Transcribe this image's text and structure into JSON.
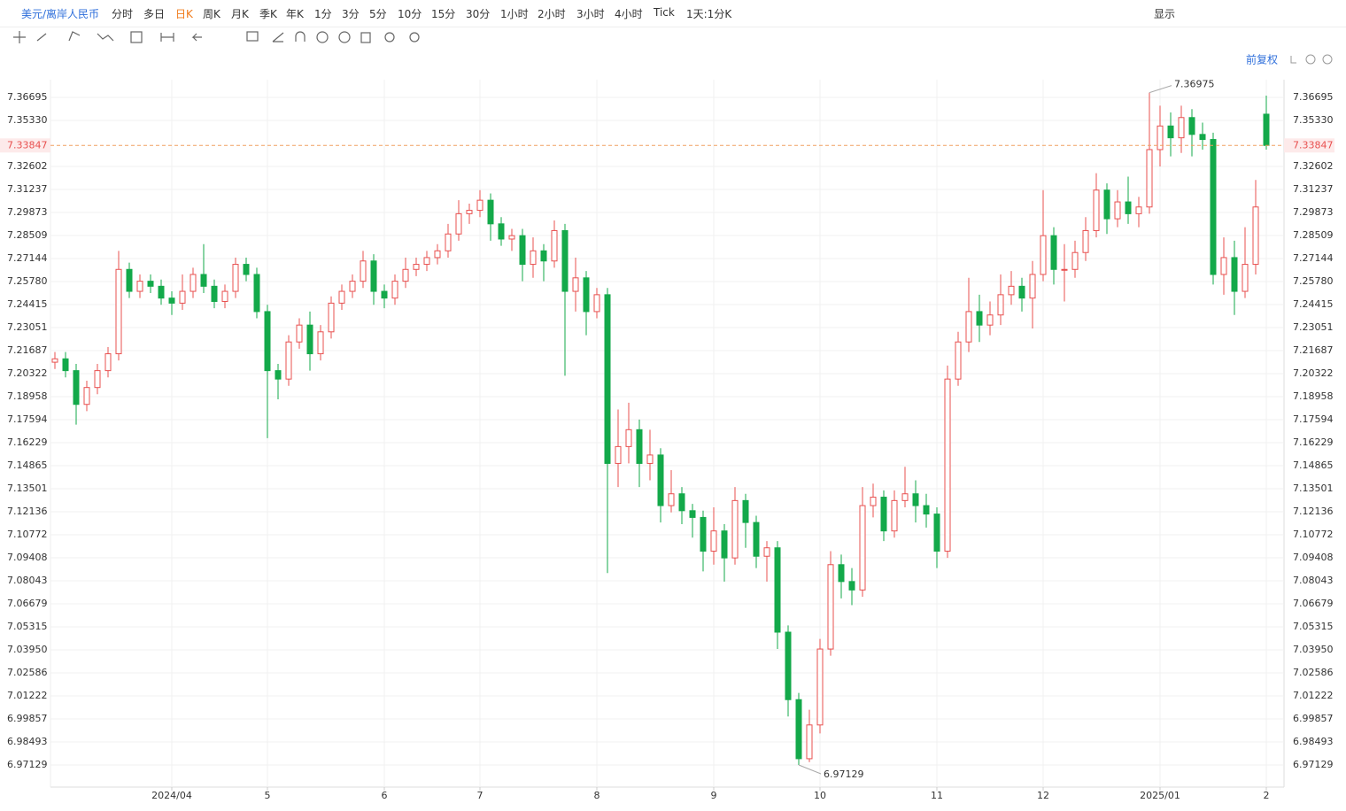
{
  "toolbar": {
    "symbol": "美元/离岸人民币",
    "periods": [
      "分时",
      "多日",
      "日K",
      "周K",
      "月K",
      "季K",
      "年K",
      "1分",
      "3分",
      "5分",
      "10分",
      "15分",
      "30分",
      "1小时",
      "2小时",
      "3小时",
      "4小时",
      "Tick",
      "1天:1分K"
    ],
    "active_period": "日K",
    "display": "显示",
    "adjust": "前复权"
  },
  "chart_data": {
    "type": "candlestick",
    "up_color": "#e8504f",
    "down_color": "#13a94a",
    "categories": [
      null,
      null,
      null,
      null,
      null,
      null,
      null,
      null,
      null,
      null,
      null,
      "2024/04",
      null,
      null,
      null,
      null,
      null,
      null,
      null,
      null,
      "5",
      null,
      null,
      null,
      null,
      null,
      null,
      null,
      null,
      null,
      null,
      "6",
      null,
      null,
      null,
      null,
      null,
      null,
      null,
      null,
      "7",
      null,
      null,
      null,
      null,
      null,
      null,
      null,
      null,
      null,
      null,
      "8",
      null,
      null,
      null,
      null,
      null,
      null,
      null,
      null,
      null,
      null,
      "9",
      null,
      null,
      null,
      null,
      null,
      null,
      null,
      null,
      null,
      "10",
      null,
      null,
      null,
      null,
      null,
      null,
      null,
      null,
      null,
      null,
      "11",
      null,
      null,
      null,
      null,
      null,
      null,
      null,
      null,
      null,
      "12",
      null,
      null,
      null,
      null,
      null,
      null,
      null,
      null,
      null,
      null,
      "2025/01",
      null,
      null,
      null,
      null,
      null,
      null,
      null,
      null,
      null,
      "2"
    ],
    "open": [
      7.21,
      7.212,
      7.205,
      7.185,
      7.195,
      7.205,
      7.215,
      7.265,
      7.252,
      7.258,
      7.255,
      7.248,
      7.245,
      7.252,
      7.262,
      7.255,
      7.246,
      7.252,
      7.268,
      7.262,
      7.24,
      7.205,
      7.2,
      7.222,
      7.232,
      7.215,
      7.228,
      7.245,
      7.252,
      7.258,
      7.27,
      7.252,
      7.248,
      7.258,
      7.265,
      7.268,
      7.272,
      7.276,
      7.286,
      7.298,
      7.3,
      7.306,
      7.292,
      7.283,
      7.285,
      7.268,
      7.276,
      7.27,
      7.288,
      7.252,
      7.26,
      7.24,
      7.25,
      7.15,
      7.16,
      7.17,
      7.15,
      7.155,
      7.125,
      7.132,
      7.122,
      7.118,
      7.098,
      7.11,
      7.094,
      7.128,
      7.115,
      7.095,
      7.1,
      7.05,
      7.01,
      6.975,
      6.995,
      7.04,
      7.09,
      7.08,
      7.075,
      7.125,
      7.13,
      7.11,
      7.128,
      7.132,
      7.125,
      7.12,
      7.098,
      7.2,
      7.222,
      7.24,
      7.232,
      7.238,
      7.25,
      7.255,
      7.248,
      7.262,
      7.285,
      7.265,
      7.265,
      7.275,
      7.288,
      7.312,
      7.295,
      7.305,
      7.298,
      7.302,
      7.336,
      7.35,
      7.343,
      7.355,
      7.345,
      7.342,
      7.262,
      7.272,
      7.252,
      7.268,
      7.357
    ],
    "high": [
      7.216,
      7.216,
      7.209,
      7.199,
      7.209,
      7.219,
      7.276,
      7.269,
      7.262,
      7.262,
      7.259,
      7.252,
      7.262,
      7.266,
      7.28,
      7.259,
      7.256,
      7.272,
      7.272,
      7.266,
      7.244,
      7.209,
      7.226,
      7.236,
      7.24,
      7.232,
      7.249,
      7.256,
      7.262,
      7.276,
      7.274,
      7.256,
      7.262,
      7.272,
      7.272,
      7.276,
      7.28,
      7.292,
      7.306,
      7.304,
      7.312,
      7.31,
      7.296,
      7.289,
      7.289,
      7.284,
      7.28,
      7.294,
      7.292,
      7.272,
      7.264,
      7.254,
      7.254,
      7.182,
      7.186,
      7.176,
      7.17,
      7.159,
      7.146,
      7.136,
      7.126,
      7.122,
      7.124,
      7.114,
      7.136,
      7.132,
      7.119,
      7.104,
      7.104,
      7.054,
      7.014,
      7.004,
      7.046,
      7.098,
      7.096,
      7.088,
      7.136,
      7.138,
      7.134,
      7.134,
      7.148,
      7.14,
      7.132,
      7.124,
      7.208,
      7.228,
      7.26,
      7.25,
      7.246,
      7.262,
      7.264,
      7.26,
      7.27,
      7.312,
      7.29,
      7.28,
      7.282,
      7.296,
      7.322,
      7.316,
      7.312,
      7.32,
      7.308,
      7.36975,
      7.362,
      7.358,
      7.362,
      7.36,
      7.352,
      7.346,
      7.284,
      7.282,
      7.29,
      7.318,
      7.368
    ],
    "low": [
      7.206,
      7.201,
      7.173,
      7.181,
      7.191,
      7.201,
      7.211,
      7.248,
      7.248,
      7.251,
      7.244,
      7.238,
      7.241,
      7.248,
      7.251,
      7.242,
      7.242,
      7.248,
      7.258,
      7.236,
      7.165,
      7.188,
      7.196,
      7.218,
      7.205,
      7.211,
      7.224,
      7.241,
      7.248,
      7.254,
      7.244,
      7.242,
      7.244,
      7.254,
      7.261,
      7.264,
      7.268,
      7.272,
      7.282,
      7.292,
      7.296,
      7.282,
      7.279,
      7.276,
      7.258,
      7.26,
      7.258,
      7.266,
      7.202,
      7.24,
      7.226,
      7.236,
      7.085,
      7.136,
      7.15,
      7.136,
      7.14,
      7.115,
      7.121,
      7.114,
      7.106,
      7.086,
      7.09,
      7.08,
      7.09,
      7.1,
      7.088,
      7.08,
      7.04,
      7.0,
      6.97129,
      6.973,
      6.99,
      7.036,
      7.07,
      7.066,
      7.071,
      7.118,
      7.104,
      7.106,
      7.124,
      7.115,
      7.112,
      7.088,
      7.094,
      7.196,
      7.216,
      7.222,
      7.226,
      7.232,
      7.244,
      7.24,
      7.23,
      7.258,
      7.256,
      7.246,
      7.26,
      7.27,
      7.284,
      7.286,
      7.29,
      7.292,
      7.29,
      7.298,
      7.326,
      7.332,
      7.334,
      7.332,
      7.336,
      7.256,
      7.25,
      7.238,
      7.248,
      7.262,
      7.336
    ],
    "close": [
      7.212,
      7.205,
      7.185,
      7.195,
      7.205,
      7.215,
      7.265,
      7.252,
      7.258,
      7.255,
      7.248,
      7.245,
      7.252,
      7.262,
      7.255,
      7.246,
      7.252,
      7.268,
      7.262,
      7.24,
      7.205,
      7.2,
      7.222,
      7.232,
      7.215,
      7.228,
      7.245,
      7.252,
      7.258,
      7.27,
      7.252,
      7.248,
      7.258,
      7.265,
      7.268,
      7.272,
      7.276,
      7.286,
      7.298,
      7.3,
      7.306,
      7.292,
      7.283,
      7.285,
      7.268,
      7.276,
      7.27,
      7.288,
      7.252,
      7.26,
      7.24,
      7.25,
      7.15,
      7.16,
      7.17,
      7.15,
      7.155,
      7.125,
      7.132,
      7.122,
      7.118,
      7.098,
      7.11,
      7.094,
      7.128,
      7.115,
      7.095,
      7.1,
      7.05,
      7.01,
      6.975,
      6.995,
      7.04,
      7.09,
      7.08,
      7.075,
      7.125,
      7.13,
      7.11,
      7.128,
      7.132,
      7.125,
      7.12,
      7.098,
      7.2,
      7.222,
      7.24,
      7.232,
      7.238,
      7.25,
      7.255,
      7.248,
      7.262,
      7.285,
      7.265,
      7.265,
      7.275,
      7.288,
      7.312,
      7.295,
      7.305,
      7.298,
      7.302,
      7.336,
      7.35,
      7.343,
      7.355,
      7.345,
      7.342,
      7.262,
      7.272,
      7.252,
      7.268,
      7.302,
      7.33847
    ],
    "ylim": [
      6.95817,
      7.38269
    ],
    "yticks": [
      7.36695,
      {
        "value": 7.3533,
        "label": "7.35330"
      },
      7.32602,
      7.31237,
      7.29873,
      7.28509,
      7.27144,
      {
        "value": 7.2578,
        "label": "7.25780"
      },
      7.24415,
      7.23051,
      7.21687,
      7.20322,
      7.18958,
      7.17594,
      7.16229,
      7.14865,
      7.13501,
      7.12136,
      7.10772,
      7.09408,
      7.08043,
      7.06679,
      7.05315,
      {
        "value": 7.0395,
        "label": "7.03950"
      },
      7.02586,
      7.01222,
      6.99857,
      6.98493,
      6.97129
    ],
    "grid": true,
    "last_price": 7.33847,
    "last_price_color": "#e8504f",
    "max_marker": 7.36975,
    "min_marker": 6.97129
  }
}
